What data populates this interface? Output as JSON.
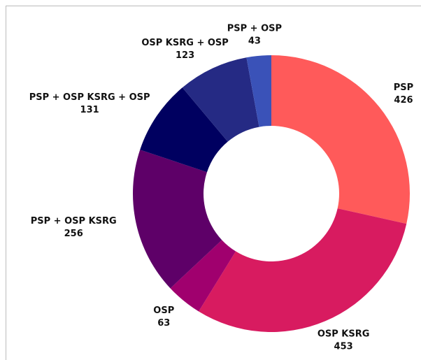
{
  "chart_data": {
    "type": "donut",
    "categories": [
      "PSP",
      "OSP KSRG",
      "OSP",
      "PSP + OSP KSRG",
      "PSP + OSP KSRG + OSP",
      "OSP KSRG + OSP",
      "PSP + OSP"
    ],
    "values": [
      426,
      453,
      63,
      256,
      131,
      123,
      43
    ],
    "colors": [
      "#ff5a5a",
      "#d81b60",
      "#a0006e",
      "#5e0068",
      "#000060",
      "#252a84",
      "#3a52b8"
    ]
  }
}
